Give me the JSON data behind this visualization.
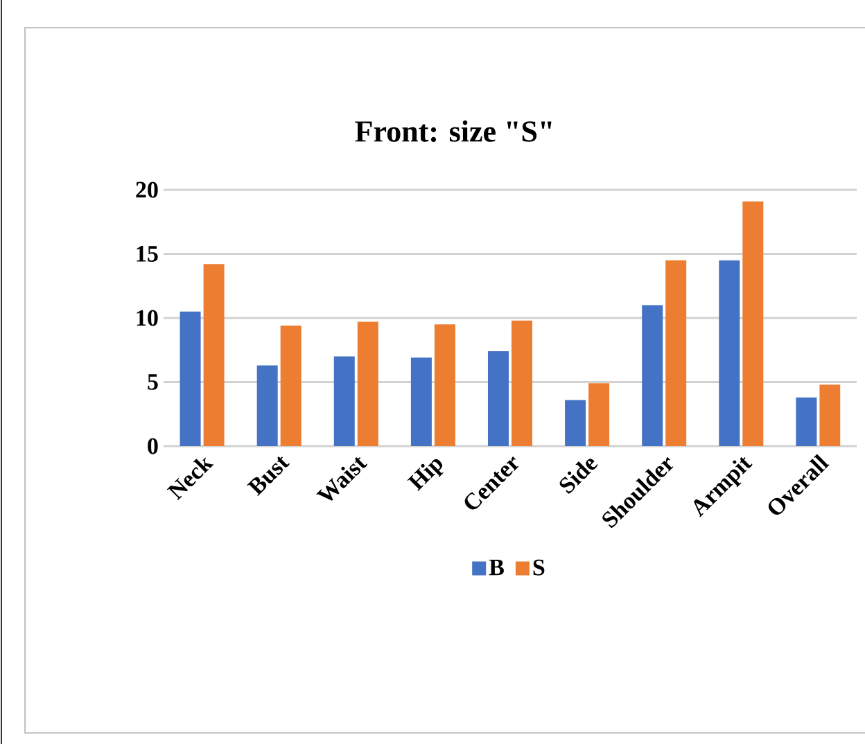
{
  "chart_data": {
    "type": "bar",
    "title": "Front: size \"S\"",
    "categories": [
      "Neck",
      "Bust",
      "Waist",
      "Hip",
      "Center",
      "Side",
      "Shoulder",
      "Armpit",
      "Overall"
    ],
    "series": [
      {
        "name": "B",
        "color": "#4472c4",
        "values": [
          10.5,
          6.3,
          7.0,
          6.9,
          7.4,
          3.6,
          11.0,
          14.5,
          3.8
        ]
      },
      {
        "name": "S",
        "color": "#ed7d31",
        "values": [
          14.2,
          9.4,
          9.7,
          9.5,
          9.8,
          4.9,
          14.5,
          19.1,
          4.8
        ]
      }
    ],
    "ylim": [
      0,
      20
    ],
    "yticks": [
      0,
      5,
      10,
      15,
      20
    ],
    "grid": "y",
    "legend": "bottom"
  }
}
